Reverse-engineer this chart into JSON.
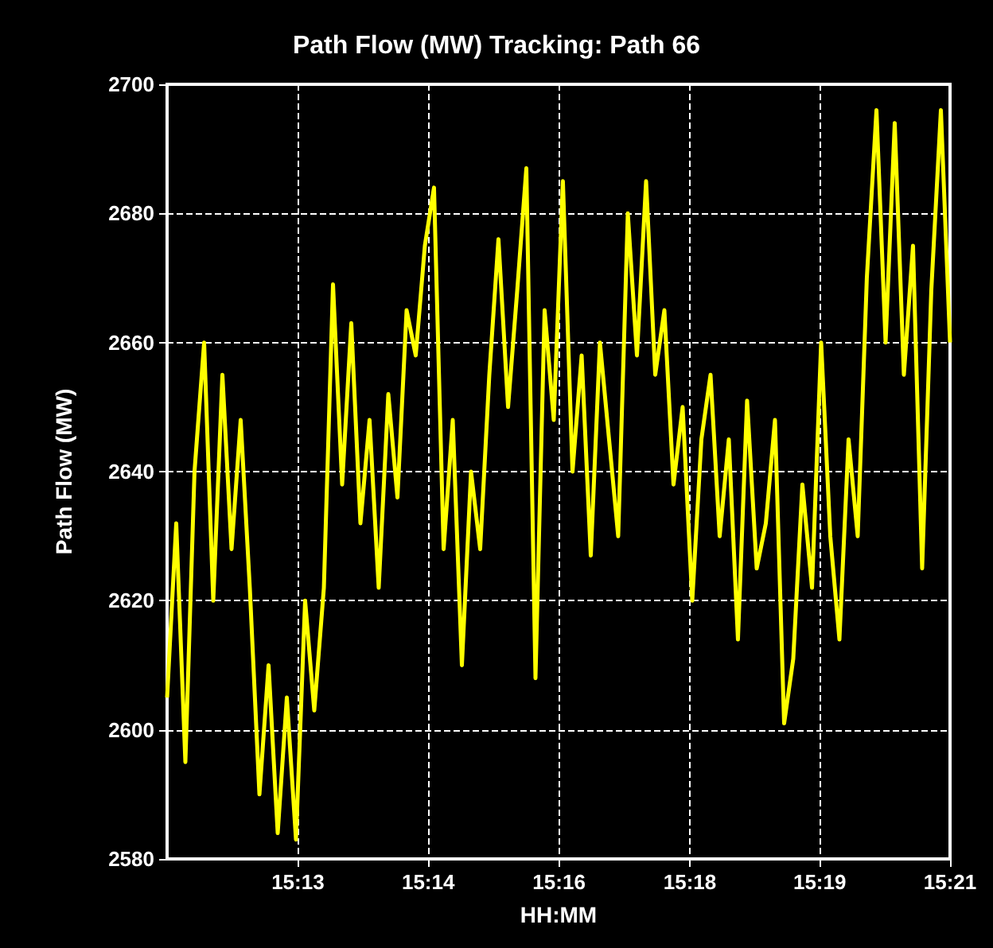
{
  "chart_data": {
    "type": "line",
    "title": "Path Flow (MW) Tracking: Path 66",
    "xlabel": "HH:MM",
    "ylabel": "Path Flow (MW)",
    "x": [
      15.1855,
      15.1874,
      15.1893,
      15.1912,
      15.1932,
      15.1951,
      15.197,
      15.1989,
      15.2008,
      15.2027,
      15.2047,
      15.2066,
      15.2085,
      15.2104,
      15.2123,
      15.2142,
      15.2161,
      15.2181,
      15.22,
      15.2219,
      15.2238,
      15.2257,
      15.2276,
      15.2295,
      15.2315,
      15.2334,
      15.2353,
      15.2372,
      15.2391,
      15.241,
      15.243,
      15.2449,
      15.2468,
      15.2487,
      15.2506,
      15.2525,
      15.2544,
      15.2564,
      15.2583,
      15.2602,
      15.2621,
      15.264,
      15.2659,
      15.2678,
      15.2698,
      15.2717,
      15.2736,
      15.2755,
      15.2774,
      15.2793,
      15.2813,
      15.2832,
      15.2851,
      15.287,
      15.2889,
      15.2908,
      15.2927,
      15.2947,
      15.2966,
      15.2985,
      15.3004,
      15.3023,
      15.3042,
      15.3061,
      15.3081,
      15.31,
      15.3119,
      15.3138,
      15.3157,
      15.3176,
      15.3196,
      15.3215,
      15.3234,
      15.3253,
      15.3272,
      15.3291,
      15.331,
      15.333,
      15.3349,
      15.3368,
      15.3387,
      15.3406,
      15.3425,
      15.3444,
      15.3464,
      15.3483
    ],
    "series": [
      {
        "color": "#ffff00",
        "values": [
          2605,
          2632,
          2595,
          2640,
          2660,
          2620,
          2655,
          2628,
          2648,
          2622,
          2590,
          2610,
          2584,
          2605,
          2583,
          2620,
          2603,
          2622,
          2669,
          2638,
          2663,
          2632,
          2648,
          2622,
          2652,
          2636,
          2665,
          2658,
          2675,
          2684,
          2628,
          2648,
          2610,
          2640,
          2628,
          2655,
          2676,
          2650,
          2668,
          2687,
          2608,
          2665,
          2648,
          2685,
          2640,
          2658,
          2627,
          2660,
          2645,
          2630,
          2680,
          2658,
          2685,
          2655,
          2665,
          2638,
          2650,
          2620,
          2645,
          2655,
          2630,
          2645,
          2614,
          2651,
          2625,
          2632,
          2648,
          2601,
          2611,
          2638,
          2622,
          2660,
          2630,
          2614,
          2645,
          2630,
          2670,
          2696,
          2660,
          2694,
          2655,
          2675,
          2625,
          2668,
          2696,
          2660
        ]
      }
    ],
    "xlim": [
      15.1855,
      15.3483
    ],
    "xticks": [
      {
        "value": 15.2127,
        "label": "15:13"
      },
      {
        "value": 15.2398,
        "label": "15:14"
      },
      {
        "value": 15.267,
        "label": "15:16"
      },
      {
        "value": 15.2942,
        "label": "15:18"
      },
      {
        "value": 15.3212,
        "label": "15:19"
      },
      {
        "value": 15.3483,
        "label": "15:21"
      }
    ],
    "ylim": [
      2580,
      2700
    ],
    "yticks": [
      2580,
      2600,
      2620,
      2640,
      2660,
      2680,
      2700
    ],
    "grid": true,
    "marker": "none",
    "line_style": "solid"
  }
}
